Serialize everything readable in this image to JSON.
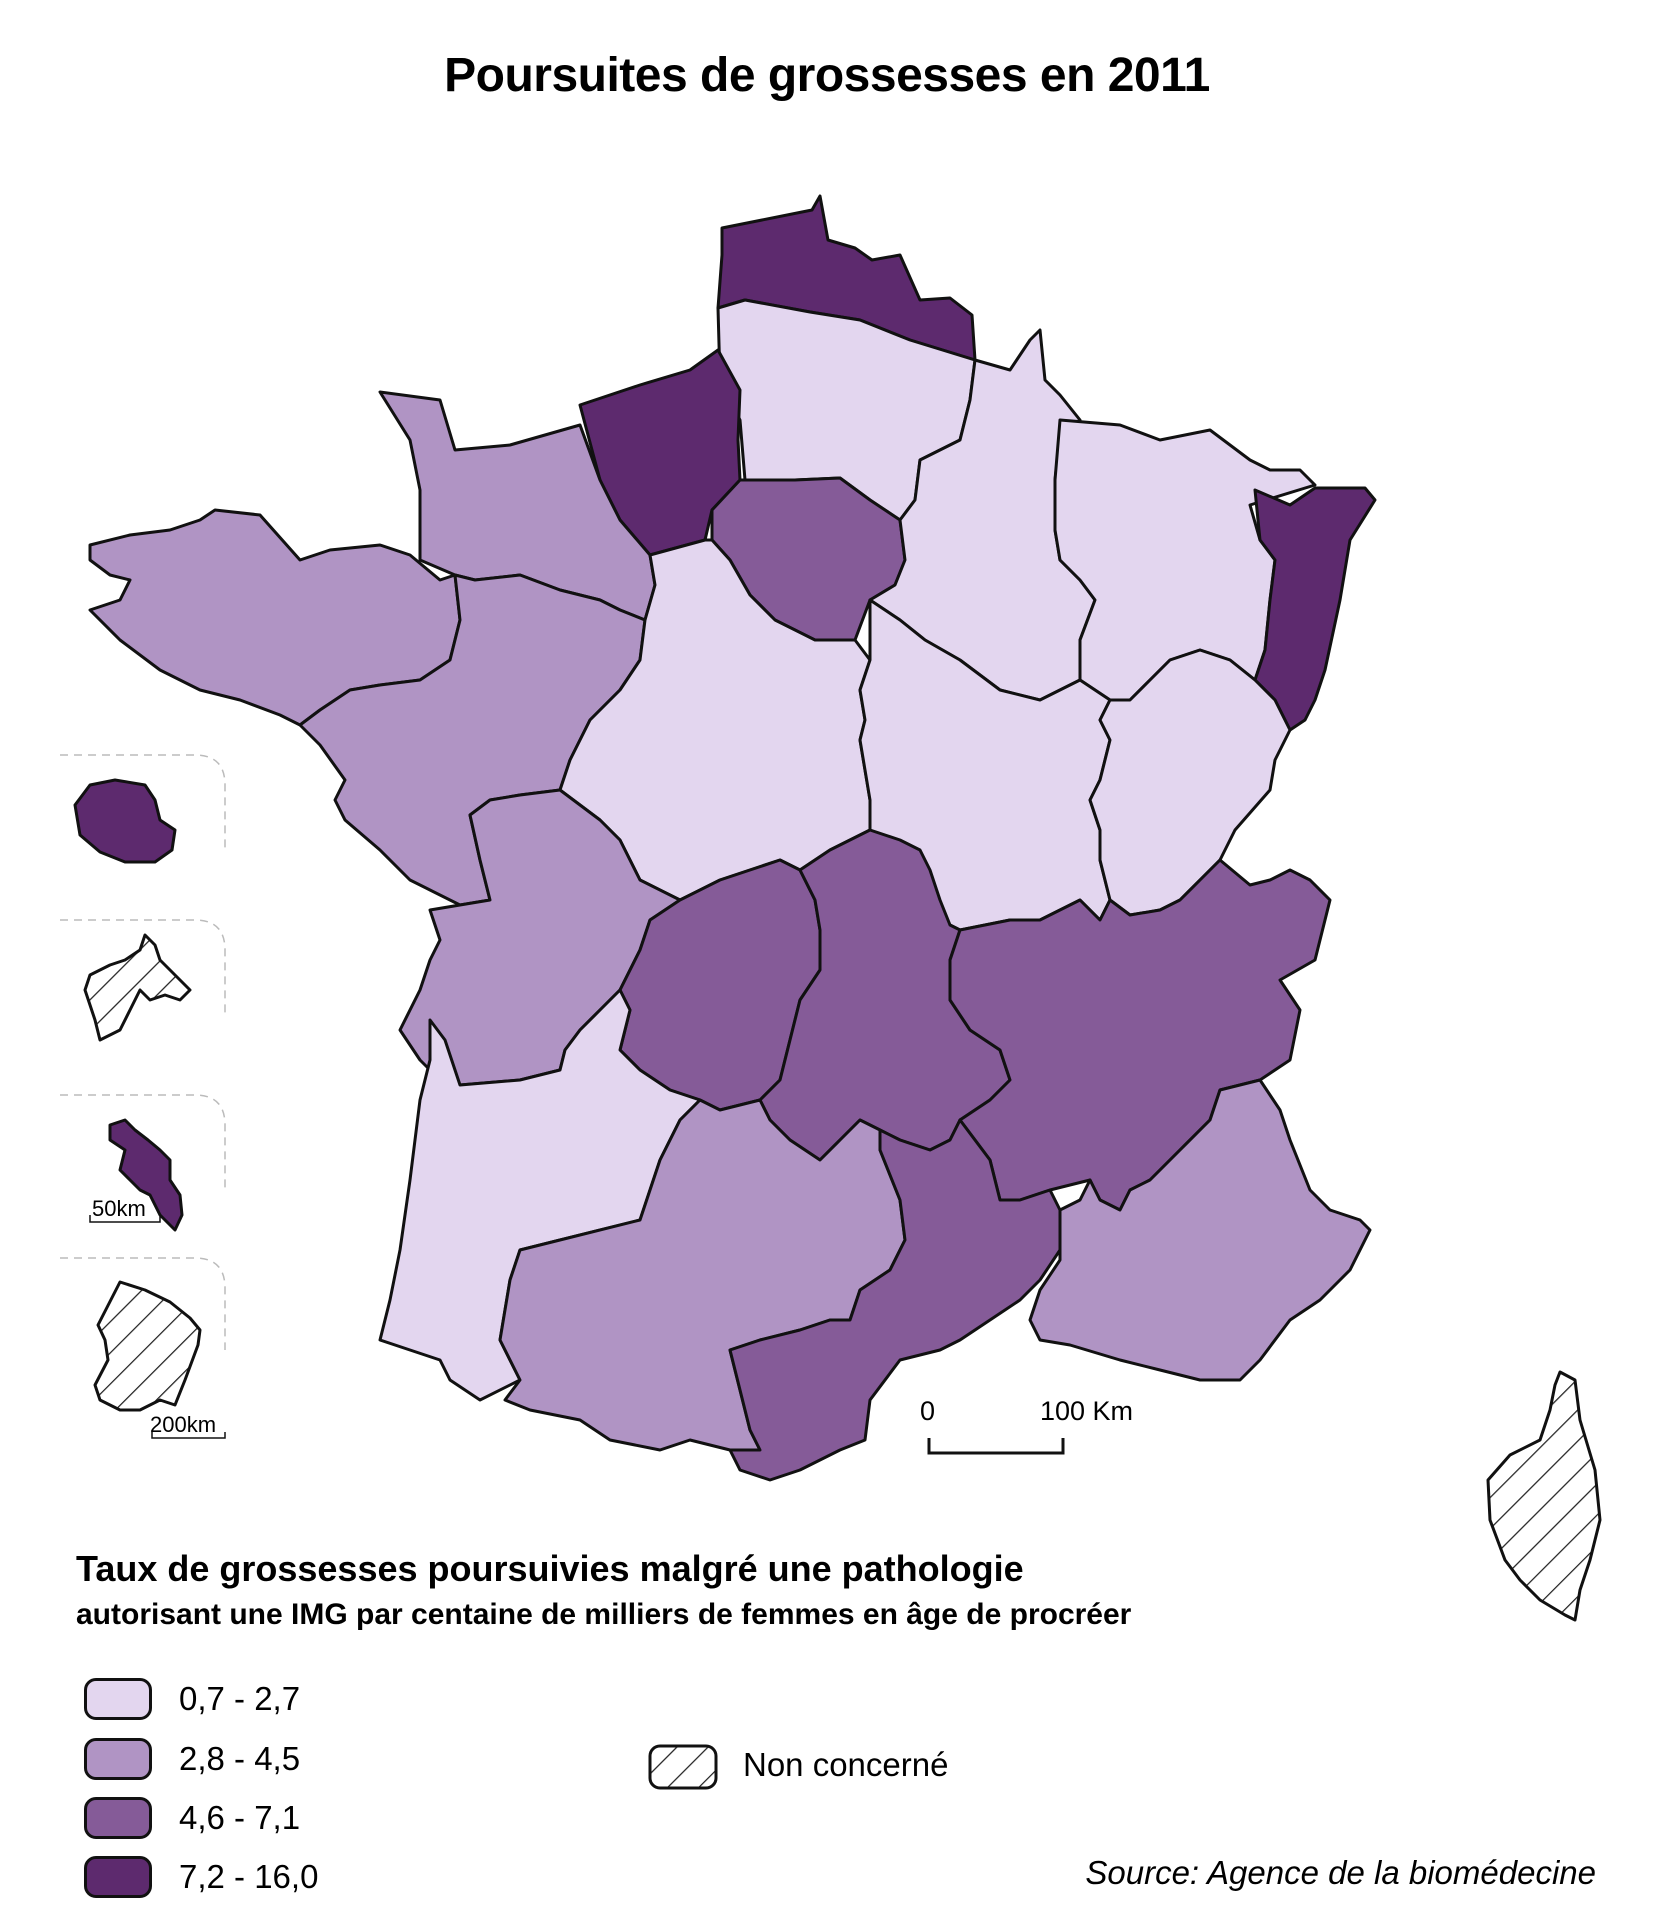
{
  "title": "Poursuites de grossesses en 2011",
  "legend": {
    "title": "Taux  de grossesses poursuivies malgré une pathologie",
    "subtitle": "autorisant une IMG par centaine de milliers de femmes en âge de procréer",
    "classes": [
      {
        "label": "0,7 - 2,7",
        "color": "#e3d6ef"
      },
      {
        "label": "2,8 - 4,5",
        "color": "#b094c4"
      },
      {
        "label": "4,6 - 7,1",
        "color": "#855b98"
      },
      {
        "label": "7,2 - 16,0",
        "color": "#5d2a6e"
      }
    ],
    "not_concerned": "Non concerné"
  },
  "scale": {
    "zero": "0",
    "max": "100 Km"
  },
  "insets": {
    "scale_small": "50km",
    "scale_large": "200km"
  },
  "source": "Source: Agence de la biomédecine",
  "icon_names": [
    "hatch-pattern-icon"
  ]
}
